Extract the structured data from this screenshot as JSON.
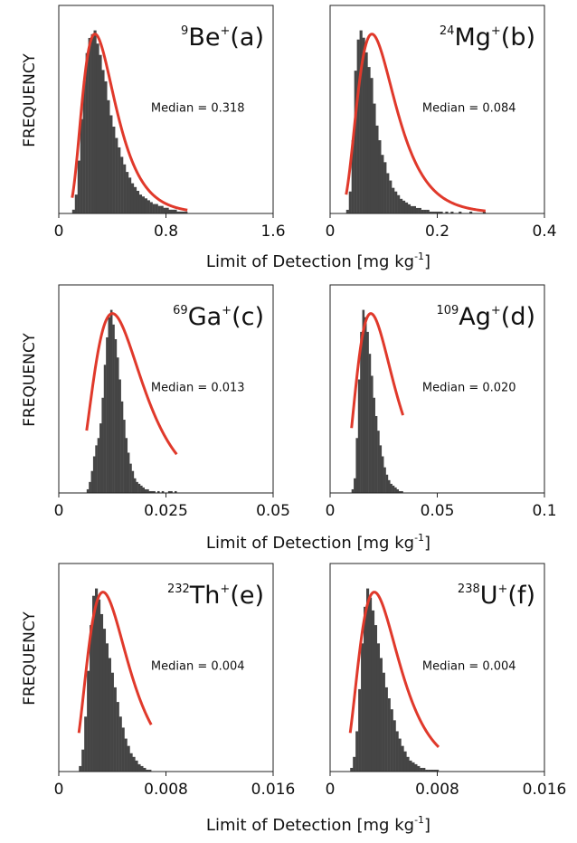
{
  "chart_data": [
    {
      "type": "histogram",
      "isotope": {
        "mass": "9",
        "symbol": "Be",
        "charge": "+",
        "label": "(a)"
      },
      "median_text": "Median = 0.318",
      "median": 0.318,
      "xlim": [
        0,
        1.6
      ],
      "xticks": [
        0,
        0.8,
        1.6
      ],
      "xtick_labels": [
        "0",
        "0.8",
        "1.6"
      ],
      "ylabel": "FREQUENCY",
      "xlabel": "Limit of Detection [mg kg-1]",
      "bins": {
        "start": 0.1,
        "width": 0.02,
        "counts": [
          2,
          10,
          28,
          50,
          70,
          85,
          93,
          95,
          97,
          90,
          84,
          76,
          70,
          60,
          52,
          46,
          40,
          35,
          30,
          26,
          22,
          19,
          16,
          14,
          12,
          10,
          9,
          8,
          7,
          6,
          5,
          5,
          4,
          4,
          3,
          3,
          2,
          2,
          2,
          1,
          1,
          1,
          1
        ]
      },
      "fit_peak": 0.27
    },
    {
      "type": "histogram",
      "isotope": {
        "mass": "24",
        "symbol": "Mg",
        "charge": "+",
        "label": "(b)"
      },
      "median_text": "Median = 0.084",
      "median": 0.084,
      "xlim": [
        0,
        0.4
      ],
      "xticks": [
        0,
        0.2,
        0.4
      ],
      "xtick_labels": [
        "0",
        "0.2",
        "0.4"
      ],
      "ylabel": "",
      "xlabel": "Limit of Detection [mg kg-1]",
      "bins": {
        "start": 0.03,
        "width": 0.005,
        "counts": [
          2,
          12,
          40,
          78,
          95,
          100,
          96,
          88,
          80,
          74,
          60,
          48,
          40,
          32,
          28,
          22,
          18,
          14,
          12,
          10,
          8,
          7,
          6,
          5,
          4,
          4,
          3,
          3,
          2,
          2,
          2,
          1,
          1,
          1,
          1,
          1,
          0,
          1,
          0,
          1,
          0,
          0,
          1,
          0,
          0,
          0,
          1,
          0,
          0,
          0,
          0,
          1
        ]
      },
      "fit_peak": 0.078
    },
    {
      "type": "histogram",
      "isotope": {
        "mass": "69",
        "symbol": "Ga",
        "charge": "+",
        "label": "(c)"
      },
      "median_text": "Median = 0.013",
      "median": 0.013,
      "xlim": [
        0,
        0.05
      ],
      "xticks": [
        0,
        0.025,
        0.05
      ],
      "xtick_labels": [
        "0",
        "0.025",
        "0.05"
      ],
      "ylabel": "FREQUENCY",
      "xlabel": "Limit of Detection [mg kg-1]",
      "bins": {
        "start": 0.0065,
        "width": 0.0005,
        "counts": [
          2,
          6,
          12,
          20,
          26,
          30,
          38,
          52,
          70,
          85,
          96,
          100,
          92,
          84,
          74,
          62,
          50,
          40,
          30,
          22,
          16,
          12,
          8,
          6,
          5,
          4,
          3,
          2,
          2,
          1,
          1,
          1,
          0,
          1,
          0,
          1,
          0,
          0,
          1,
          1,
          0,
          1
        ]
      },
      "fit_peak": 0.0125
    },
    {
      "type": "histogram",
      "isotope": {
        "mass": "109",
        "symbol": "Ag",
        "charge": "+",
        "label": "(d)"
      },
      "median_text": "Median = 0.020",
      "median": 0.02,
      "xlim": [
        0,
        0.1
      ],
      "xticks": [
        0,
        0.05,
        0.1
      ],
      "xtick_labels": [
        "0",
        "0.05",
        "0.1"
      ],
      "ylabel": "",
      "xlabel": "Limit of Detection [mg kg-1]",
      "bins": {
        "start": 0.01,
        "width": 0.001,
        "counts": [
          2,
          8,
          30,
          62,
          88,
          100,
          96,
          88,
          76,
          64,
          52,
          42,
          34,
          26,
          20,
          14,
          10,
          7,
          5,
          4,
          3,
          2,
          1,
          1
        ]
      },
      "fit_peak": 0.019
    },
    {
      "type": "histogram",
      "isotope": {
        "mass": "232",
        "symbol": "Th",
        "charge": "+",
        "label": "(e)"
      },
      "median_text": "Median = 0.004",
      "median": 0.004,
      "xlim": [
        0,
        0.016
      ],
      "xticks": [
        0,
        0.008,
        0.016
      ],
      "xtick_labels": [
        "0",
        "0.008",
        "0.016"
      ],
      "ylabel": "FREQUENCY",
      "xlabel": "Limit of Detection [mg kg-1]",
      "bins": {
        "start": 0.0015,
        "width": 0.0002,
        "counts": [
          3,
          12,
          30,
          55,
          80,
          96,
          100,
          94,
          86,
          78,
          70,
          62,
          54,
          46,
          38,
          30,
          24,
          18,
          14,
          10,
          8,
          6,
          4,
          3,
          2,
          1,
          1
        ]
      },
      "fit_peak": 0.0033
    },
    {
      "type": "histogram",
      "isotope": {
        "mass": "238",
        "symbol": "U",
        "charge": "+",
        "label": "(f)"
      },
      "median_text": "Median = 0.004",
      "median": 0.004,
      "xlim": [
        0,
        0.016
      ],
      "xticks": [
        0,
        0.008,
        0.016
      ],
      "xtick_labels": [
        "0",
        "0.008",
        "0.016"
      ],
      "ylabel": "",
      "xlabel": "Limit of Detection [mg kg-1]",
      "bins": {
        "start": 0.0015,
        "width": 0.0002,
        "counts": [
          2,
          8,
          22,
          45,
          70,
          90,
          100,
          95,
          88,
          80,
          70,
          62,
          54,
          46,
          40,
          34,
          28,
          22,
          18,
          14,
          11,
          8,
          6,
          5,
          4,
          3,
          2,
          2,
          1,
          1,
          1,
          1,
          1
        ]
      },
      "fit_peak": 0.0033
    }
  ],
  "row_xlabels": [
    {
      "main": "Limit of Detection [mg kg",
      "sup": "-1",
      "close": "]"
    },
    {
      "main": "Limit of Detection [mg kg",
      "sup": "-1",
      "close": "]"
    },
    {
      "main": "Limit of Detection [mg kg",
      "sup": "-1",
      "close": "]"
    }
  ],
  "colors": {
    "bars": "#454545",
    "fit": "#e0392b",
    "frame": "#222222"
  }
}
